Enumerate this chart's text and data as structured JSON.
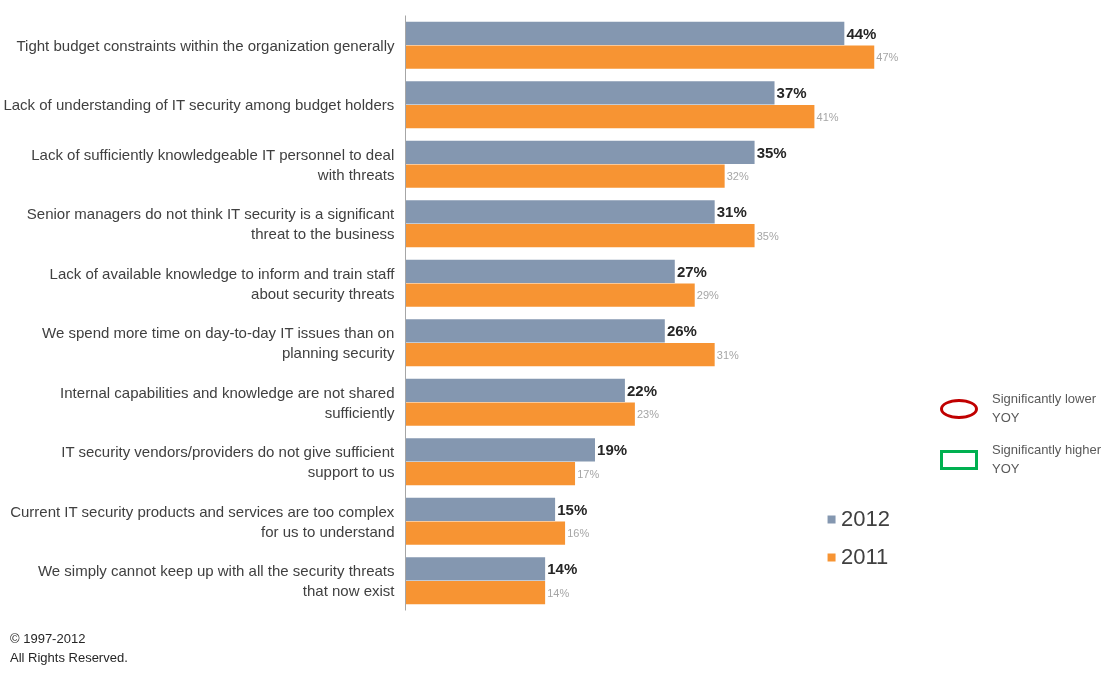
{
  "chart_data": {
    "type": "bar",
    "orientation": "horizontal",
    "categories": [
      "Tight budget constraints within the organization generally",
      "Lack of understanding of IT security among budget holders",
      "Lack of sufficiently knowledgeable IT personnel to deal with threats",
      "Senior managers do not think IT security is a significant threat to the business",
      "Lack of available knowledge to inform and train staff about security threats",
      "We spend more time on day-to-day IT issues than on planning security",
      "Internal capabilities and knowledge are not shared sufficiently",
      "IT security vendors/providers do not give sufficient support to us",
      "Current IT security products and services are too complex for us to understand",
      "We simply cannot keep up with all the security threats that now exist"
    ],
    "series": [
      {
        "name": "2012",
        "color": "#8497b0",
        "values": [
          44,
          37,
          35,
          31,
          27,
          26,
          22,
          19,
          15,
          14
        ],
        "value_labels": [
          "44%",
          "37%",
          "35%",
          "31%",
          "27%",
          "26%",
          "22%",
          "19%",
          "15%",
          "14%"
        ]
      },
      {
        "name": "2011",
        "color": "#f79433",
        "values": [
          47,
          41,
          32,
          35,
          29,
          31,
          23,
          17,
          16,
          14
        ],
        "value_labels": [
          "47%",
          "41%",
          "32%",
          "35%",
          "29%",
          "31%",
          "23%",
          "17%",
          "16%",
          "14%"
        ]
      }
    ],
    "legend": "bottom right",
    "grid": false,
    "annotations": [
      "© 1997-2012",
      "All Rights Reserved.",
      "Significantly lower YOY",
      "Significantly higher YOY"
    ]
  }
}
